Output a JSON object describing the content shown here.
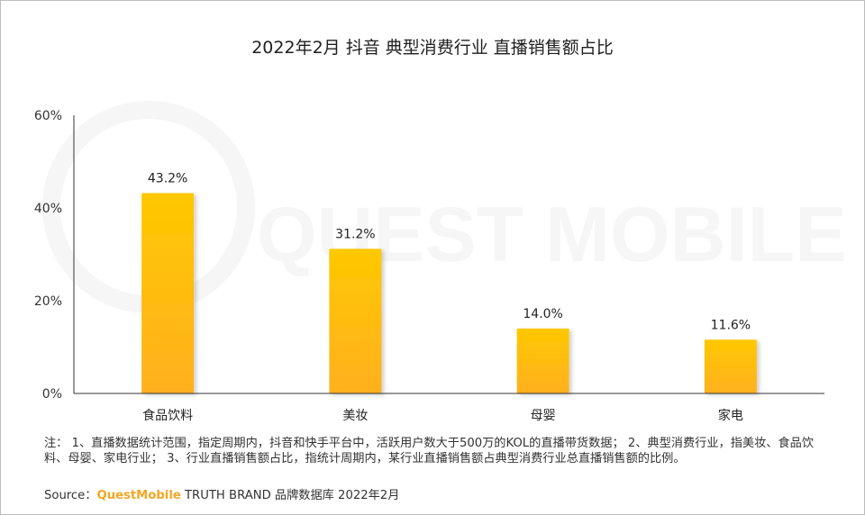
{
  "chart_data": {
    "type": "bar",
    "title": "2022年2月 抖音 典型消费行业 直播销售额占比",
    "categories": [
      "食品饮料",
      "美妆",
      "母婴",
      "家电"
    ],
    "values": [
      43.2,
      31.2,
      14.0,
      11.6
    ],
    "value_labels": [
      "43.2%",
      "31.2%",
      "14.0%",
      "11.6%"
    ],
    "ylim": [
      0,
      60
    ],
    "yticks": [
      0,
      20,
      40,
      60
    ],
    "ytick_labels": [
      "0%",
      "20%",
      "40%",
      "60%"
    ],
    "xlabel": "",
    "ylabel": "",
    "grid": false,
    "legend": "none",
    "bar_color_top": "#ffc800",
    "bar_color_bottom": "#ffb020"
  },
  "watermark": {
    "text": "QUEST MOBILE"
  },
  "notes": {
    "text": "注：  1、直播数据统计范围，指定周期内，抖音和快手平台中，活跃用户数大于500万的KOL的直播带货数据；  2、典型消费行业，指美妆、食品饮料、母婴、家电行业；  3、行业直播销售额占比，指统计周期内，某行业直播销售额占典型消费行业总直播销售额的比例。"
  },
  "source": {
    "prefix": "Source：",
    "brand": "QuestMobile",
    "suffix": " TRUTH BRAND 品牌数据库 2022年2月"
  }
}
